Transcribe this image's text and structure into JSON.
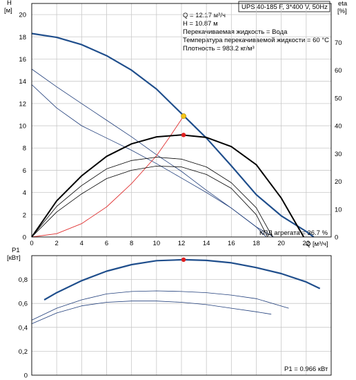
{
  "header": {
    "model": "UPS 40-185 F, 3*400 V, 50Hz"
  },
  "operating_point": {
    "lines": [
      "Q = 12.17 м³/ч",
      "H = 10.87 м",
      "Перекачиваемая жидкость = Вода",
      "Температура перекачиваемой жидкости = 60 °C",
      "Плотность = 983.2 кг/м³"
    ],
    "efficiency_label": "КПД агрегата = 36.7 %",
    "power_label": "P1 = 0.966 кВт"
  },
  "colors": {
    "pump_curve": "#1f4e8c",
    "system_curve": "#e03030",
    "duty_point_head": "#f5c518",
    "duty_point_eta": "#e02020",
    "efficiency_curve": "#000000",
    "speed_curves": "#1f3d7a",
    "grid": "#c8c8c8"
  },
  "chart_data": [
    {
      "type": "line",
      "name": "head-efficiency",
      "xlabel": "Q [м³/ч]",
      "ylabel_left": "H",
      "ylabel_left_unit": "[м]",
      "ylabel_right": "eta",
      "ylabel_right_unit": "[%]",
      "xlim": [
        0,
        24
      ],
      "ylim_left": [
        0,
        21
      ],
      "ylim_right": [
        0,
        84
      ],
      "x_ticks": [
        0,
        2,
        4,
        6,
        8,
        10,
        12,
        14,
        16,
        18,
        20,
        22
      ],
      "y_ticks_left": [
        0,
        2,
        4,
        6,
        8,
        10,
        12,
        14,
        16,
        18,
        20
      ],
      "y_ticks_right": [
        0,
        10,
        20,
        30,
        40,
        50,
        60,
        70
      ],
      "grid": true,
      "series": [
        {
          "role": "head-max-speed",
          "x": [
            0,
            2,
            4,
            6,
            8,
            10,
            12,
            14,
            16,
            18,
            20,
            22,
            22.6
          ],
          "y": [
            18.3,
            17.95,
            17.3,
            16.3,
            15.0,
            13.3,
            11.1,
            8.9,
            6.4,
            3.8,
            1.9,
            0.5,
            0
          ]
        },
        {
          "role": "head-speed-2",
          "x": [
            0,
            2,
            4,
            6,
            8,
            10,
            12,
            14,
            16,
            18,
            19.4
          ],
          "y": [
            15.1,
            13.5,
            12.0,
            10.5,
            9.0,
            7.4,
            5.9,
            4.2,
            2.6,
            0.9,
            0
          ]
        },
        {
          "role": "head-speed-3",
          "x": [
            0,
            2,
            4,
            6,
            8,
            10,
            12,
            14,
            16,
            18,
            18.8
          ],
          "y": [
            13.7,
            11.6,
            10.0,
            8.9,
            7.8,
            6.6,
            5.3,
            4.0,
            2.6,
            0.9,
            0
          ]
        },
        {
          "role": "system-curve",
          "x": [
            0,
            2,
            4,
            6,
            8,
            10,
            11,
            12.17
          ],
          "y": [
            0,
            0.3,
            1.2,
            2.7,
            4.8,
            7.3,
            8.9,
            10.87
          ]
        },
        {
          "role": "efficiency-max-speed",
          "x": [
            0,
            2,
            4,
            6,
            8,
            10,
            12,
            14,
            16,
            18,
            20,
            21.8
          ],
          "y": [
            0,
            13,
            22,
            29,
            33.5,
            36,
            36.7,
            35.8,
            32.5,
            26,
            14,
            0
          ]
        },
        {
          "role": "efficiency-speed-2",
          "x": [
            0,
            2,
            4,
            6,
            8,
            10,
            12,
            14,
            16,
            18,
            19.3
          ],
          "y": [
            0,
            11,
            18.5,
            24.5,
            27.5,
            28.7,
            28,
            25.2,
            19.5,
            10.5,
            0
          ]
        },
        {
          "role": "efficiency-speed-3",
          "x": [
            0,
            2,
            4,
            6,
            8,
            10,
            12,
            14,
            16,
            18,
            18.9
          ],
          "y": [
            0,
            9,
            15.5,
            21,
            24,
            25.5,
            25.2,
            22.5,
            17.5,
            8,
            0
          ]
        }
      ],
      "duty_point": {
        "q": 12.17,
        "h": 10.87,
        "eta": 36.7
      }
    },
    {
      "type": "line",
      "name": "power",
      "ylabel": "P1",
      "ylabel_unit": "[кВт]",
      "xlim": [
        0,
        24
      ],
      "ylim": [
        0,
        1.0
      ],
      "y_tick_values": [
        0,
        0.2,
        0.4,
        0.6,
        0.8
      ],
      "y_tick_labels": [
        "0",
        "0,2",
        "0,4",
        "0,6",
        "0,8"
      ],
      "grid": true,
      "series": [
        {
          "role": "power-max-speed",
          "x": [
            1,
            2,
            4,
            6,
            8,
            10,
            12.17,
            14,
            16,
            18,
            20,
            22,
            23.1
          ],
          "y": [
            0.63,
            0.69,
            0.79,
            0.87,
            0.925,
            0.958,
            0.966,
            0.96,
            0.94,
            0.9,
            0.85,
            0.78,
            0.725
          ]
        },
        {
          "role": "power-speed-2",
          "x": [
            0,
            2,
            4,
            6,
            8,
            10,
            12,
            14,
            16,
            18,
            20.6
          ],
          "y": [
            0.46,
            0.56,
            0.63,
            0.68,
            0.7,
            0.705,
            0.7,
            0.69,
            0.67,
            0.64,
            0.56
          ]
        },
        {
          "role": "power-speed-3",
          "x": [
            0,
            2,
            4,
            6,
            8,
            10,
            12,
            14,
            16,
            18,
            19.2
          ],
          "y": [
            0.43,
            0.52,
            0.58,
            0.61,
            0.62,
            0.62,
            0.61,
            0.59,
            0.56,
            0.53,
            0.51
          ]
        }
      ],
      "duty_point": {
        "q": 12.17,
        "p1": 0.966
      }
    }
  ]
}
